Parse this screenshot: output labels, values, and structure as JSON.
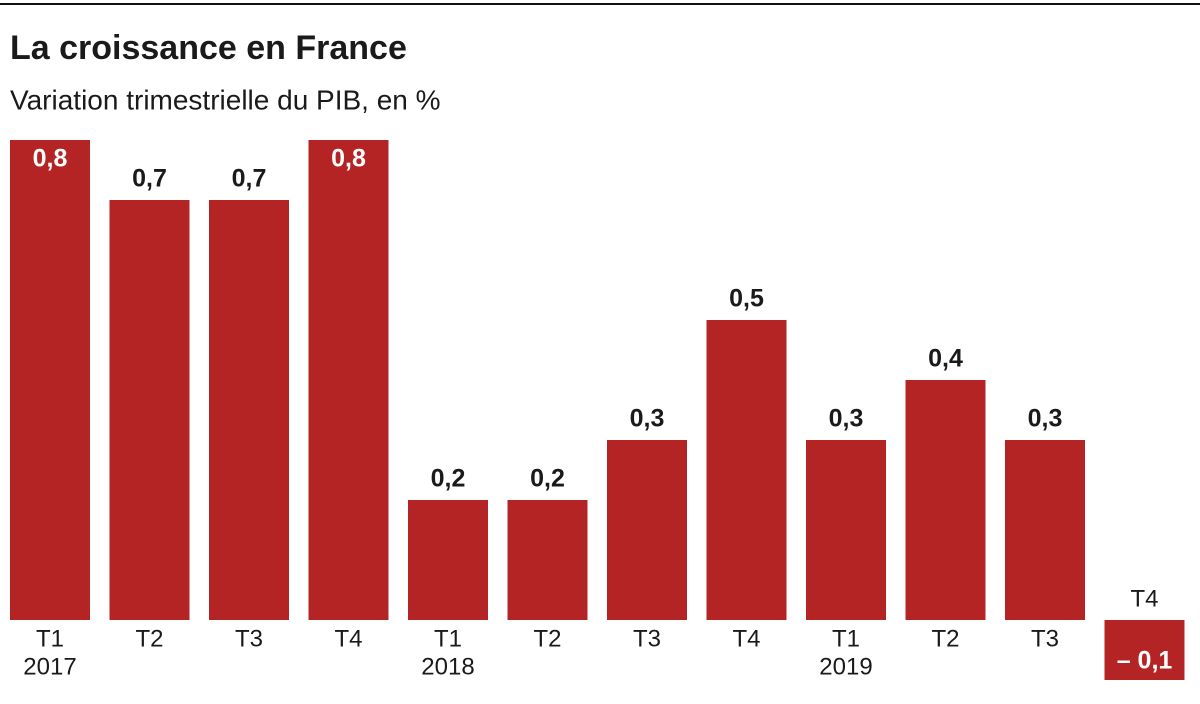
{
  "chart_data": {
    "type": "bar",
    "title": "La croissance en France",
    "subtitle": "Variation trimestrielle du PIB, en %",
    "categories": [
      "T1",
      "T2",
      "T3",
      "T4",
      "T1",
      "T2",
      "T3",
      "T4",
      "T1",
      "T2",
      "T3",
      "T4"
    ],
    "category_years": [
      "2017",
      null,
      null,
      null,
      "2018",
      null,
      null,
      null,
      "2019",
      null,
      null,
      null
    ],
    "values": [
      0.8,
      0.7,
      0.7,
      0.8,
      0.2,
      0.2,
      0.3,
      0.5,
      0.3,
      0.4,
      0.3,
      -0.1
    ],
    "value_labels": [
      "0,8",
      "0,7",
      "0,7",
      "0,8",
      "0,2",
      "0,2",
      "0,3",
      "0,5",
      "0,3",
      "0,4",
      "0,3",
      "– 0,1"
    ],
    "color": "#b52425",
    "ylim": [
      -0.1,
      0.8
    ]
  }
}
